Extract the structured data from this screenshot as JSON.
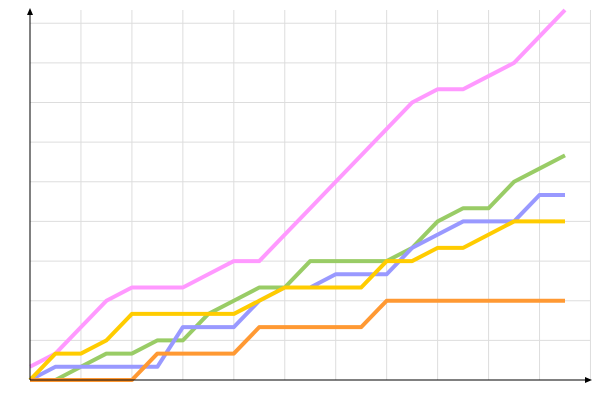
{
  "chart_data": {
    "type": "line",
    "title": "",
    "xlabel": "",
    "ylabel": "",
    "x": [
      0,
      1,
      2,
      3,
      4,
      5,
      6,
      7,
      8,
      9,
      10,
      11,
      12,
      13,
      14,
      15,
      16,
      17,
      18,
      19,
      20,
      21
    ],
    "xlim": [
      0,
      21
    ],
    "ylim": [
      0,
      28
    ],
    "grid": true,
    "legend": "none",
    "series": [
      {
        "color": "#ff99ff",
        "values": [
          1,
          2,
          4,
          6,
          7,
          7,
          7,
          8,
          9,
          9,
          11,
          13,
          15,
          17,
          19,
          21,
          22,
          22,
          23,
          24,
          26,
          28
        ]
      },
      {
        "color": "#99cc66",
        "values": [
          0,
          0,
          1,
          2,
          2,
          3,
          3,
          5,
          6,
          7,
          7,
          9,
          9,
          9,
          9,
          10,
          12,
          13,
          13,
          15,
          16,
          17
        ]
      },
      {
        "color": "#9999ff",
        "values": [
          0,
          1,
          1,
          1,
          1,
          1,
          4,
          4,
          4,
          6,
          7,
          7,
          8,
          8,
          8,
          10,
          11,
          12,
          12,
          12,
          14,
          14
        ]
      },
      {
        "color": "#ffcc00",
        "values": [
          0,
          2,
          2,
          3,
          5,
          5,
          5,
          5,
          5,
          6,
          7,
          7,
          7,
          7,
          9,
          9,
          10,
          10,
          11,
          12,
          12,
          12
        ]
      },
      {
        "color": "#ff9933",
        "values": [
          0,
          0,
          0,
          0,
          0,
          2,
          2,
          2,
          2,
          4,
          4,
          4,
          4,
          4,
          6,
          6,
          6,
          6,
          6,
          6,
          6,
          6
        ]
      }
    ]
  }
}
